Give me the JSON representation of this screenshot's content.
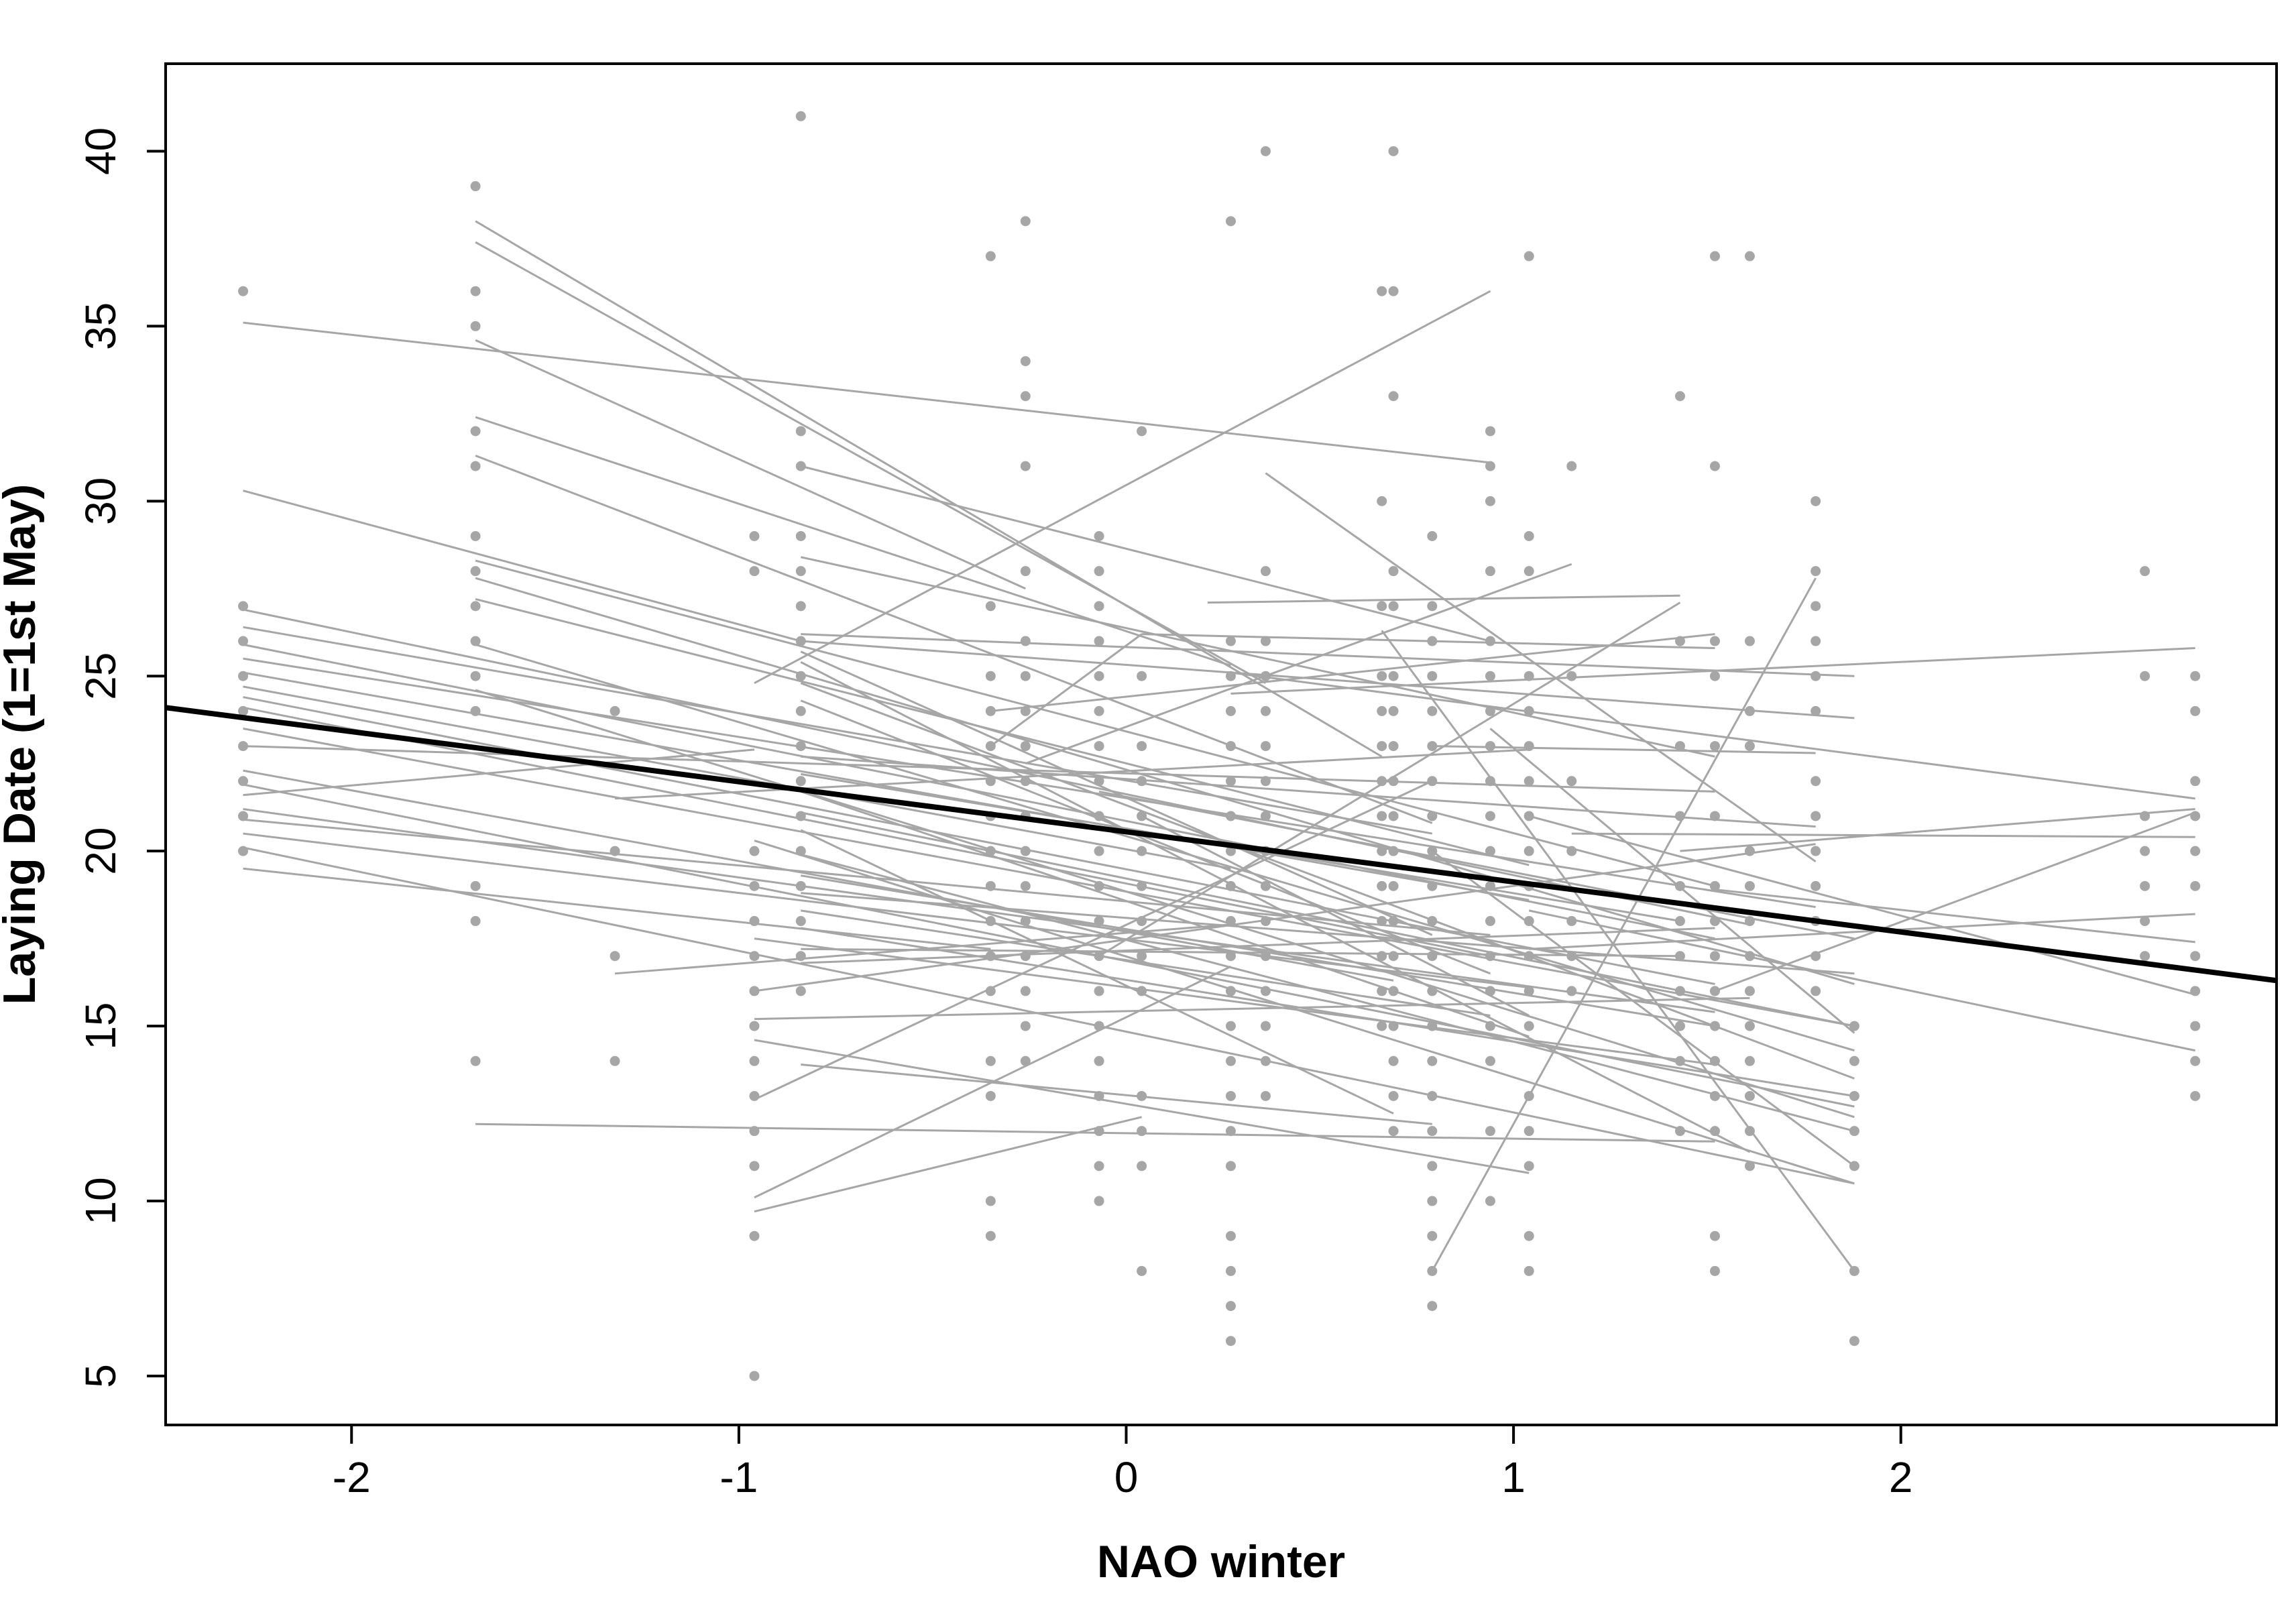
{
  "chart_data": {
    "type": "scatter",
    "title": "",
    "xlabel": "NAO winter",
    "ylabel": "Laying Date (1=1st May)",
    "xlim": [
      -2.48,
      2.97
    ],
    "ylim": [
      3.6,
      42.5
    ],
    "x_ticks": [
      -2,
      -1,
      0,
      1,
      2
    ],
    "x_tick_labels": [
      "-2",
      "-1",
      "0",
      "1",
      "2"
    ],
    "y_ticks": [
      5,
      10,
      15,
      20,
      25,
      30,
      35,
      40
    ],
    "y_tick_labels": [
      "5",
      "10",
      "15",
      "20",
      "25",
      "30",
      "35",
      "40"
    ],
    "grid": false,
    "colors": {
      "points": "#a6a6a6",
      "individual_lines": "#a6a6a6",
      "population_line": "#000000"
    },
    "population_line": {
      "x": [
        -2.48,
        2.97
      ],
      "y": [
        24.1,
        16.3
      ]
    },
    "points_by_x": [
      {
        "x": -2.28,
        "y": [
          36,
          27,
          26,
          25,
          24,
          23,
          22,
          21,
          20
        ]
      },
      {
        "x": -1.68,
        "y": [
          39,
          36,
          35,
          32,
          31,
          29,
          28,
          27,
          26,
          25,
          24,
          19,
          18,
          14
        ]
      },
      {
        "x": -1.32,
        "y": [
          24,
          20,
          17,
          14
        ]
      },
      {
        "x": -0.96,
        "y": [
          29,
          28,
          20,
          19,
          18,
          17,
          16,
          15,
          14,
          13,
          12,
          11,
          9,
          5
        ]
      },
      {
        "x": -0.84,
        "y": [
          41,
          32,
          31,
          29,
          28,
          27,
          26,
          25,
          24,
          23,
          22,
          21,
          20,
          19,
          18,
          17,
          16
        ]
      },
      {
        "x": -0.35,
        "y": [
          37,
          27,
          25,
          24,
          23,
          22,
          21,
          20,
          19,
          18,
          17,
          16,
          14,
          13,
          10,
          9
        ]
      },
      {
        "x": -0.26,
        "y": [
          38,
          34,
          33,
          31,
          28,
          26,
          25,
          24,
          23,
          22,
          21,
          20,
          19,
          18,
          17,
          16,
          15,
          14
        ]
      },
      {
        "x": -0.07,
        "y": [
          29,
          28,
          27,
          26,
          25,
          24,
          23,
          22,
          21,
          20,
          19,
          18,
          17,
          16,
          15,
          14,
          13,
          12,
          11,
          10
        ]
      },
      {
        "x": 0.04,
        "y": [
          32,
          25,
          23,
          22,
          21,
          20,
          19,
          18,
          17,
          16,
          13,
          12,
          11,
          8
        ]
      },
      {
        "x": 0.27,
        "y": [
          38,
          26,
          25,
          24,
          23,
          22,
          21,
          20,
          19,
          18,
          17,
          16,
          15,
          14,
          13,
          12,
          11,
          9,
          8,
          7,
          6
        ]
      },
      {
        "x": 0.36,
        "y": [
          40,
          28,
          26,
          25,
          24,
          23,
          22,
          21,
          20,
          19,
          18,
          17,
          16,
          15,
          14,
          13
        ]
      },
      {
        "x": 0.66,
        "y": [
          36,
          30,
          27,
          25,
          24,
          23,
          22,
          21,
          20,
          19,
          18,
          17,
          16,
          15
        ]
      },
      {
        "x": 0.69,
        "y": [
          40,
          36,
          33,
          28,
          27,
          25,
          24,
          23,
          22,
          21,
          20,
          19,
          18,
          17,
          16,
          15,
          14,
          13,
          12
        ]
      },
      {
        "x": 0.79,
        "y": [
          29,
          27,
          26,
          25,
          24,
          23,
          22,
          21,
          20,
          19,
          18,
          17,
          16,
          15,
          14,
          13,
          12,
          11,
          10,
          9,
          8,
          7
        ]
      },
      {
        "x": 0.94,
        "y": [
          32,
          31,
          30,
          28,
          26,
          25,
          24,
          23,
          22,
          21,
          20,
          19,
          18,
          17,
          16,
          15,
          14,
          12,
          10
        ]
      },
      {
        "x": 1.04,
        "y": [
          37,
          29,
          28,
          25,
          24,
          23,
          22,
          21,
          20,
          19,
          18,
          17,
          16,
          15,
          13,
          12,
          11,
          9,
          8
        ]
      },
      {
        "x": 1.15,
        "y": [
          31,
          25,
          22,
          20,
          18,
          17,
          16
        ]
      },
      {
        "x": 1.43,
        "y": [
          33,
          26,
          23,
          21,
          19,
          18,
          17,
          16,
          15,
          14,
          12
        ]
      },
      {
        "x": 1.52,
        "y": [
          37,
          31,
          26,
          25,
          23,
          21,
          19,
          18,
          17,
          16,
          15,
          14,
          13,
          12,
          9,
          8
        ]
      },
      {
        "x": 1.61,
        "y": [
          37,
          26,
          24,
          23,
          20,
          19,
          18,
          17,
          16,
          15,
          14,
          13,
          12,
          11
        ]
      },
      {
        "x": 1.78,
        "y": [
          30,
          28,
          27,
          26,
          25,
          24,
          22,
          21,
          20,
          19,
          18,
          17,
          16
        ]
      },
      {
        "x": 1.88,
        "y": [
          15,
          14,
          13,
          12,
          11,
          8,
          6
        ]
      },
      {
        "x": 2.63,
        "y": [
          28,
          25,
          21,
          20,
          19,
          18,
          17
        ]
      },
      {
        "x": 2.76,
        "y": [
          25,
          24,
          22,
          21,
          20,
          19,
          17,
          16,
          15,
          14,
          13
        ]
      }
    ],
    "individual_lines": [
      [
        -2.28,
        35.1,
        0.94,
        31.1
      ],
      [
        -1.68,
        38.0,
        0.66,
        22.7
      ],
      [
        -1.68,
        37.4,
        0.36,
        24.8
      ],
      [
        -1.68,
        34.6,
        -0.26,
        27.5
      ],
      [
        -1.68,
        32.4,
        0.27,
        25.3
      ],
      [
        -1.68,
        31.3,
        0.79,
        20.8
      ],
      [
        -2.28,
        30.3,
        -0.84,
        26.0
      ],
      [
        -1.68,
        28.3,
        1.52,
        19.0
      ],
      [
        -1.68,
        27.8,
        1.88,
        16.2
      ],
      [
        -1.68,
        27.2,
        1.04,
        19.6
      ],
      [
        -2.28,
        26.9,
        1.61,
        17.9
      ],
      [
        -2.28,
        26.4,
        0.79,
        20.5
      ],
      [
        -2.28,
        25.9,
        1.52,
        17.5
      ],
      [
        -1.68,
        25.9,
        1.88,
        14.3
      ],
      [
        -2.28,
        25.5,
        1.78,
        18.4
      ],
      [
        -2.28,
        25.1,
        1.04,
        18.6
      ],
      [
        -1.68,
        24.6,
        1.88,
        12.4
      ],
      [
        -2.28,
        24.7,
        0.27,
        19.5
      ],
      [
        -2.28,
        24.4,
        1.52,
        16.2
      ],
      [
        -2.28,
        24.1,
        0.94,
        17.0
      ],
      [
        -2.28,
        23.5,
        1.88,
        15.0
      ],
      [
        -2.28,
        23.0,
        1.52,
        21.7
      ],
      [
        -2.28,
        22.3,
        0.69,
        16.3
      ],
      [
        -2.28,
        21.9,
        1.88,
        12.7
      ],
      [
        -2.28,
        21.2,
        1.52,
        15.4
      ],
      [
        -2.28,
        20.9,
        0.94,
        17.6
      ],
      [
        -2.28,
        20.5,
        1.04,
        16.1
      ],
      [
        -2.28,
        20.1,
        1.88,
        10.5
      ],
      [
        -2.28,
        19.5,
        -0.35,
        17.2
      ],
      [
        -2.28,
        21.6,
        -0.96,
        22.9
      ],
      [
        -1.68,
        12.2,
        1.52,
        11.7
      ],
      [
        -1.32,
        21.5,
        1.04,
        22.9
      ],
      [
        -1.32,
        16.5,
        0.27,
        17.9
      ],
      [
        -0.96,
        24.8,
        0.94,
        36.0
      ],
      [
        -0.96,
        20.3,
        1.88,
        10.5
      ],
      [
        -0.96,
        17.5,
        1.52,
        13.9
      ],
      [
        -0.96,
        16.0,
        1.78,
        20.2
      ],
      [
        -0.96,
        15.2,
        1.61,
        15.8
      ],
      [
        -0.96,
        14.6,
        1.04,
        10.8
      ],
      [
        -0.96,
        12.9,
        0.79,
        22.0
      ],
      [
        -0.96,
        10.1,
        0.27,
        16.7
      ],
      [
        -0.96,
        9.7,
        0.04,
        12.4
      ],
      [
        -0.84,
        31.0,
        0.94,
        26.0
      ],
      [
        -0.84,
        28.4,
        1.52,
        22.7
      ],
      [
        -0.84,
        26.2,
        1.88,
        25.0
      ],
      [
        -0.84,
        26.0,
        1.88,
        23.8
      ],
      [
        -0.84,
        25.7,
        0.79,
        17.6
      ],
      [
        -0.84,
        25.4,
        1.61,
        11.4
      ],
      [
        -0.84,
        24.8,
        1.88,
        13.5
      ],
      [
        -0.84,
        24.3,
        0.94,
        16.5
      ],
      [
        -0.84,
        22.7,
        1.78,
        20.7
      ],
      [
        -0.84,
        22.2,
        1.43,
        18.0
      ],
      [
        -0.84,
        21.7,
        1.04,
        14.7
      ],
      [
        -0.84,
        21.1,
        1.88,
        15.0
      ],
      [
        -0.84,
        20.6,
        0.69,
        12.5
      ],
      [
        -0.84,
        19.9,
        1.88,
        12.0
      ],
      [
        -0.84,
        19.3,
        1.52,
        15.0
      ],
      [
        -0.84,
        18.8,
        1.88,
        16.5
      ],
      [
        -0.84,
        18.3,
        0.94,
        15.3
      ],
      [
        -0.84,
        17.8,
        1.88,
        13.0
      ],
      [
        -0.84,
        17.2,
        1.43,
        17.0
      ],
      [
        -0.84,
        16.8,
        1.52,
        17.8
      ],
      [
        -0.84,
        13.9,
        0.79,
        12.2
      ],
      [
        -0.35,
        24.0,
        1.52,
        26.2
      ],
      [
        -0.35,
        23.0,
        0.04,
        26.2
      ],
      [
        -0.26,
        22.5,
        1.15,
        28.2
      ],
      [
        -0.07,
        21.7,
        1.88,
        17.5
      ],
      [
        -0.07,
        17.0,
        1.43,
        27.1
      ],
      [
        0.04,
        26.2,
        1.52,
        25.8
      ],
      [
        0.04,
        21.0,
        1.04,
        15.3
      ],
      [
        0.21,
        27.1,
        1.43,
        27.3
      ],
      [
        0.27,
        25.1,
        2.76,
        21.5
      ],
      [
        0.27,
        24.5,
        2.76,
        25.8
      ],
      [
        0.36,
        30.8,
        1.78,
        19.7
      ],
      [
        0.66,
        26.3,
        1.88,
        8.0
      ],
      [
        0.79,
        23.0,
        1.78,
        22.8
      ],
      [
        0.79,
        20.0,
        1.88,
        11.0
      ],
      [
        0.79,
        8.0,
        1.78,
        27.8
      ],
      [
        0.94,
        23.5,
        1.88,
        14.8
      ],
      [
        1.04,
        21.0,
        2.76,
        15.9
      ],
      [
        1.04,
        18.3,
        2.76,
        14.3
      ],
      [
        1.04,
        17.2,
        2.76,
        18.2
      ],
      [
        1.15,
        20.5,
        2.76,
        20.4
      ],
      [
        1.43,
        20.0,
        2.76,
        21.2
      ],
      [
        1.52,
        18.9,
        2.76,
        17.4
      ],
      [
        1.52,
        16.0,
        2.76,
        21.1
      ]
    ]
  }
}
